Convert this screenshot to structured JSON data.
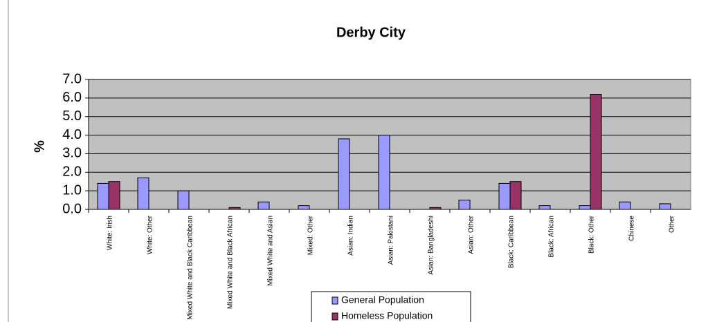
{
  "chart_data": {
    "type": "bar",
    "title": "Derby City",
    "y_label": "%",
    "categories": [
      "White: Irish",
      "White: Other",
      "Mixed White and Black Caribbean",
      "Mixed White and Black African",
      "Mixed White and Asian",
      "Mixed: Other",
      "Asian: Indian",
      "Asian: Pakistani",
      "Asian: Bangladeshi",
      "Asian: Other",
      "Black: Caribbean",
      "Black: African",
      "Black: Other",
      "Chinese",
      "Other"
    ],
    "series": [
      {
        "name": "General Population",
        "color": "#9999ff",
        "values": [
          1.4,
          1.7,
          1.0,
          0,
          0.4,
          0.2,
          3.8,
          4.0,
          0,
          0.5,
          1.4,
          0.2,
          0.2,
          0.4,
          0.3
        ]
      },
      {
        "name": "Homeless Population",
        "color": "#993366",
        "values": [
          1.5,
          0,
          0,
          0.1,
          0,
          0,
          0,
          0,
          0.1,
          0,
          1.5,
          0,
          6.2,
          0,
          0
        ]
      }
    ],
    "ylim": [
      0,
      7
    ],
    "yticks": [
      {
        "value": 0,
        "label": "0.0"
      },
      {
        "value": 1,
        "label": "1.0"
      },
      {
        "value": 2,
        "label": "2.0"
      },
      {
        "value": 3,
        "label": "3.0"
      },
      {
        "value": 4,
        "label": "4.0"
      },
      {
        "value": 5,
        "label": "5.0"
      },
      {
        "value": 6,
        "label": "6.0"
      },
      {
        "value": 7,
        "label": "7.0"
      }
    ],
    "grid": true,
    "plot_background": "#c0c0c0",
    "legend": "bottom"
  }
}
